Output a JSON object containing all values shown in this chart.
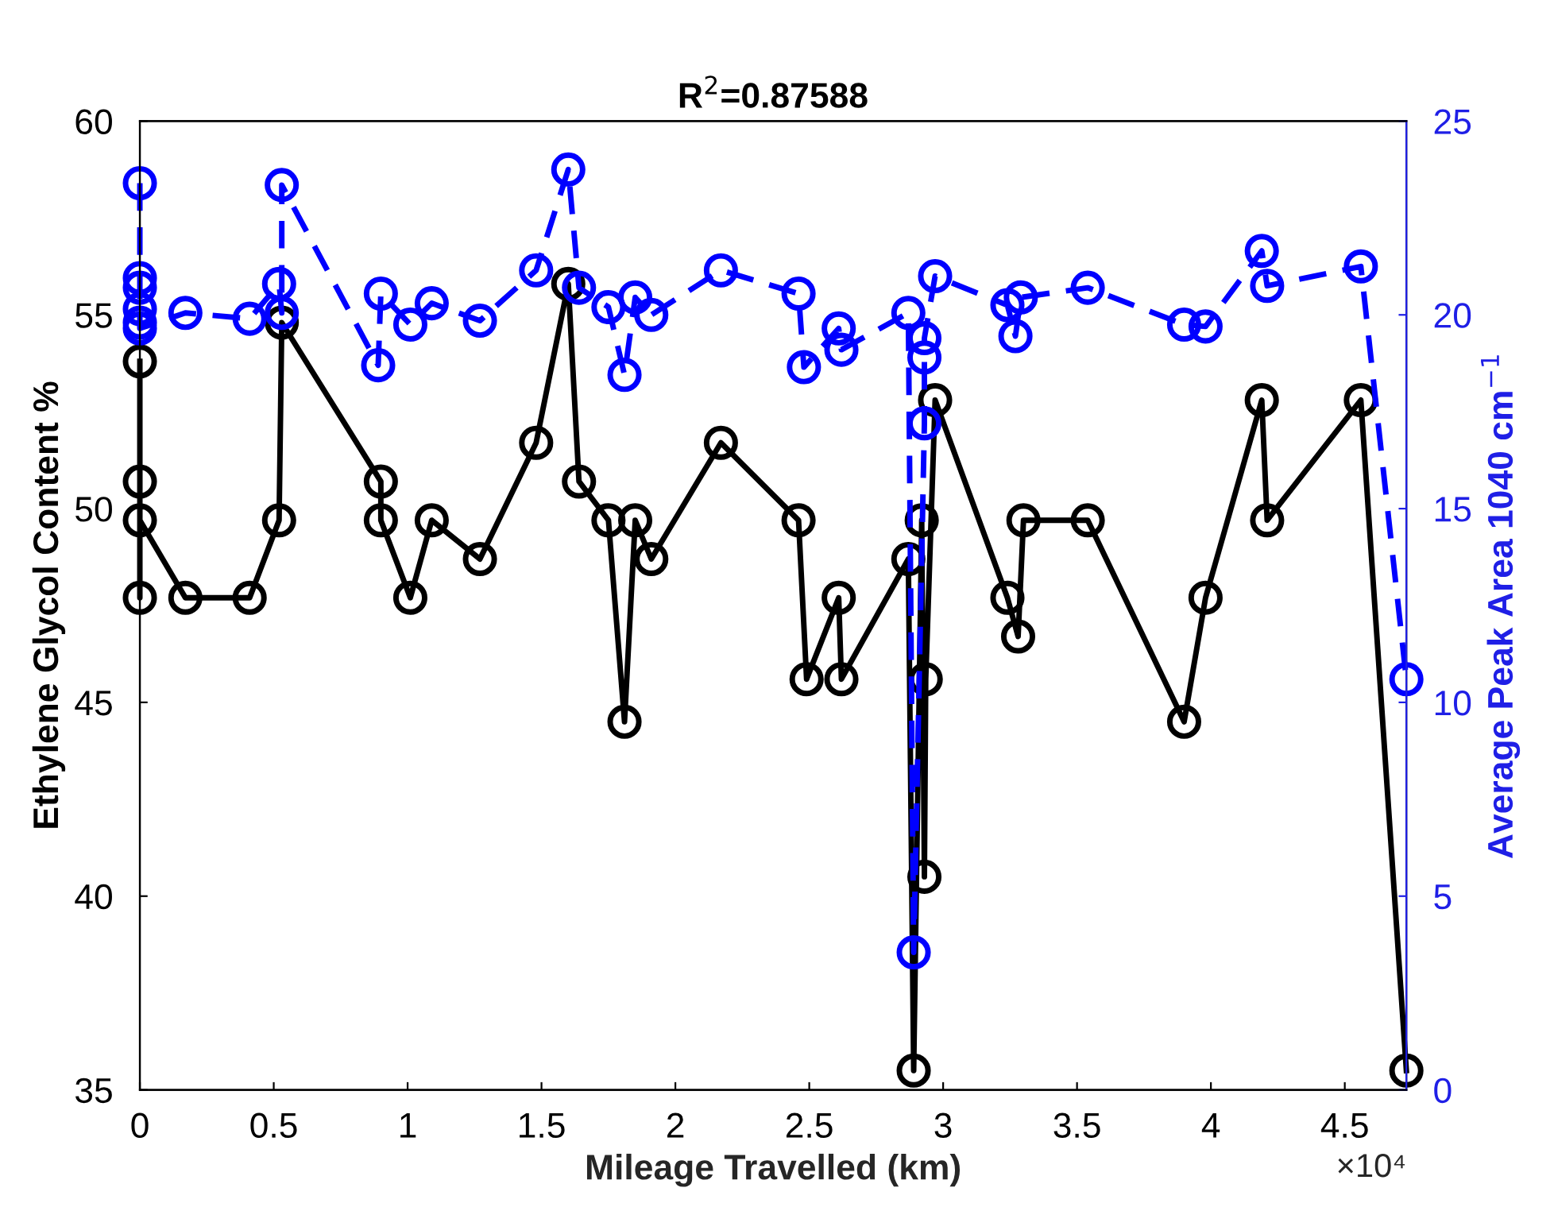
{
  "chart_data": {
    "type": "line",
    "title": "R$^{2}$=0.87588",
    "xlabel": "Mileage Travelled (km)",
    "ylabel": "Ethylene Glycol Content %",
    "y2label": "Average Peak Area 1040 cm$^{−1}$",
    "annotations": [
      "×10⁴"
    ],
    "xlim": [
      0,
      4.73
    ],
    "xticks": [
      0,
      0.5,
      1,
      1.5,
      2,
      2.5,
      3,
      3.5,
      4,
      4.5
    ],
    "ylim": [
      35,
      60
    ],
    "yticks": [
      35,
      40,
      45,
      50,
      55,
      60
    ],
    "y2lim": [
      0,
      25
    ],
    "y2ticks": [
      0,
      5,
      10,
      15,
      20,
      25
    ],
    "marker": "circle",
    "grid": false,
    "legend": false,
    "series": [
      {
        "color": "#000000",
        "line_style": "solid",
        "x": [
          0,
          0,
          0,
          0,
          0.17,
          0.41,
          0.52,
          0.53,
          0.9,
          0.9,
          1.01,
          1.09,
          1.27,
          1.48,
          1.6,
          1.64,
          1.75,
          1.81,
          1.85,
          1.91,
          2.17,
          2.46,
          2.49,
          2.61,
          2.62,
          2.87,
          2.89,
          2.92,
          2.93,
          2.935,
          2.97,
          3.24,
          3.28,
          3.3,
          3.54,
          3.9,
          3.98,
          4.19,
          4.21,
          4.56,
          4.73
        ],
        "values": [
          53.8,
          50.7,
          47.7,
          49.7,
          47.7,
          47.7,
          49.7,
          54.8,
          50.7,
          49.7,
          47.7,
          49.7,
          48.7,
          51.7,
          55.8,
          50.7,
          49.7,
          44.5,
          49.7,
          48.7,
          51.7,
          49.7,
          45.6,
          47.7,
          45.6,
          48.7,
          35.5,
          49.7,
          40.5,
          45.6,
          52.8,
          47.7,
          46.7,
          49.7,
          49.7,
          44.5,
          47.7,
          52.8,
          49.7,
          52.8,
          35.5
        ]
      },
      {
        "color": "#0000ff",
        "axis": "y2",
        "line_style": "dashed",
        "x": [
          0,
          0,
          0,
          0,
          0,
          0,
          0.17,
          0.41,
          0.52,
          0.53,
          0.53,
          0.89,
          0.9,
          1.01,
          1.09,
          1.27,
          1.48,
          1.6,
          1.64,
          1.75,
          1.81,
          1.85,
          1.91,
          2.17,
          2.46,
          2.48,
          2.61,
          2.62,
          2.87,
          2.89,
          2.93,
          2.93,
          2.93,
          2.97,
          3.24,
          3.27,
          3.29,
          3.54,
          3.9,
          3.98,
          4.19,
          4.21,
          4.56,
          4.73
        ],
        "values": [
          23.4,
          20.95,
          20.7,
          20.15,
          19.8,
          19.65,
          20.05,
          19.9,
          20.8,
          20.05,
          23.35,
          18.7,
          20.55,
          19.75,
          20.3,
          19.85,
          21.15,
          23.75,
          20.7,
          20.2,
          18.45,
          20.45,
          20.0,
          21.15,
          20.55,
          18.65,
          19.65,
          19.1,
          20.05,
          3.55,
          17.2,
          18.9,
          19.4,
          21.0,
          20.25,
          19.45,
          20.45,
          20.7,
          19.75,
          19.7,
          21.65,
          20.75,
          21.25,
          10.6
        ]
      }
    ]
  }
}
